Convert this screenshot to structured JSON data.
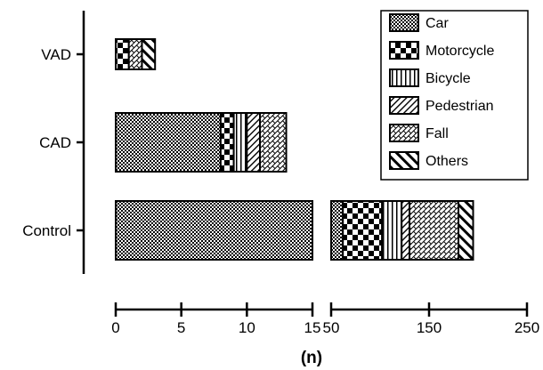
{
  "chart_data": {
    "type": "bar",
    "orientation": "horizontal",
    "stacked": true,
    "xlabel": "(n)",
    "ylabel": "",
    "categories": [
      "VAD",
      "CAD",
      "Control"
    ],
    "x_axis": {
      "broken": true,
      "segments": [
        {
          "range": [
            0,
            15
          ],
          "ticks": [
            0,
            5,
            10,
            15
          ],
          "tick_labels": [
            "0",
            "5",
            "10",
            "15"
          ]
        },
        {
          "range": [
            50,
            250
          ],
          "ticks": [
            50,
            150,
            250
          ],
          "tick_labels": [
            "50",
            "150",
            "250"
          ]
        }
      ]
    },
    "series": [
      {
        "name": "Car",
        "pattern": "checker-fine",
        "values": [
          0,
          8,
          62
        ]
      },
      {
        "name": "Motorcycle",
        "pattern": "checker-bold",
        "values": [
          1,
          1,
          40
        ]
      },
      {
        "name": "Bicycle",
        "pattern": "vertical-lines",
        "values": [
          0,
          1,
          20
        ]
      },
      {
        "name": "Pedestrian",
        "pattern": "diagonal-down",
        "values": [
          0,
          1,
          8
        ]
      },
      {
        "name": "Fall",
        "pattern": "bricks-diagonal",
        "values": [
          1,
          2,
          50
        ]
      },
      {
        "name": "Others",
        "pattern": "diagonal-thick",
        "values": [
          1,
          0,
          15
        ]
      }
    ],
    "legend_position": "top-right",
    "grid": false
  }
}
